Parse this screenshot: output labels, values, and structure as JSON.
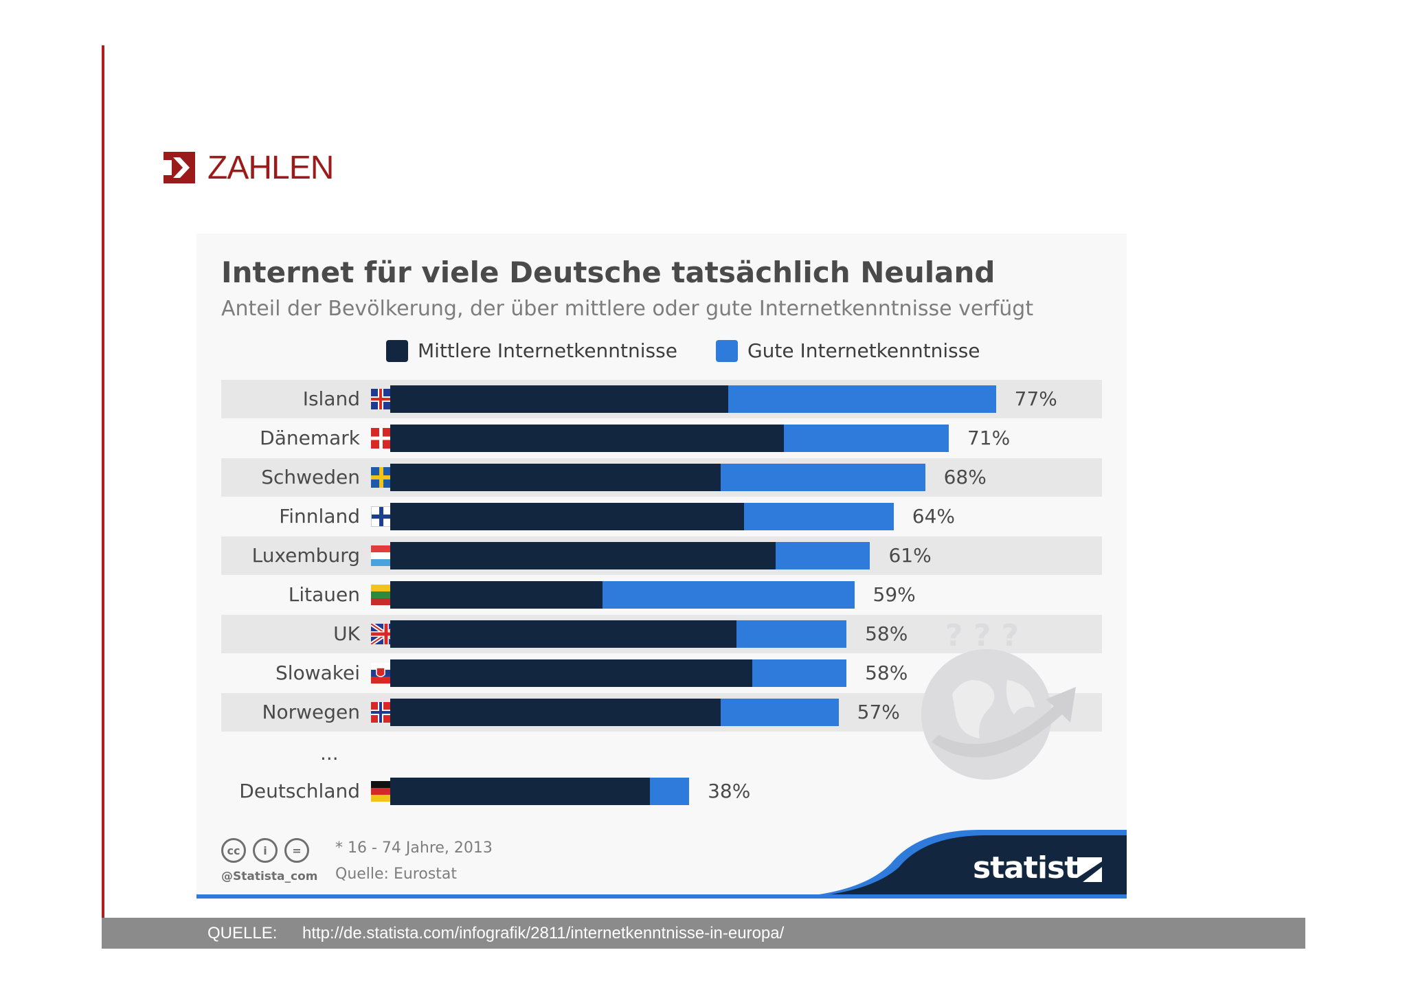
{
  "section": {
    "title": "ZAHLEN",
    "icon": "arrow-box-icon"
  },
  "chart_data": {
    "type": "bar",
    "orientation": "horizontal",
    "stacked": true,
    "title": "Internet für viele Deutsche tatsächlich Neuland",
    "subtitle": "Anteil der Bevölkerung, der über mittlere oder gute Internetkenntnisse verfügt",
    "categories": [
      "Island",
      "Dänemark",
      "Schweden",
      "Finnland",
      "Luxemburg",
      "Litauen",
      "UK",
      "Slowakei",
      "Norwegen",
      "Deutschland"
    ],
    "series": [
      {
        "name": "Mittlere Internetkenntnisse",
        "color": "#12263f",
        "values": [
          43,
          50,
          42,
          45,
          49,
          27,
          44,
          46,
          42,
          33
        ]
      },
      {
        "name": "Gute Internetkenntnisse",
        "color": "#2e7bdc",
        "values": [
          34,
          21,
          26,
          19,
          12,
          32,
          14,
          12,
          15,
          5
        ]
      }
    ],
    "totals": [
      "77%",
      "71%",
      "68%",
      "64%",
      "61%",
      "59%",
      "58%",
      "58%",
      "57%",
      "38%"
    ],
    "gap_label": "...",
    "xlim": [
      0,
      100
    ],
    "legend_position": "top",
    "grid": false
  },
  "footer": {
    "handle": "@Statista_com",
    "note": "* 16 - 74 Jahre, 2013",
    "source": "Quelle: Eurostat",
    "brand": "statista",
    "cc_icons": [
      {
        "name": "cc-icon",
        "text": "cc"
      },
      {
        "name": "attribution-icon",
        "text": "i"
      },
      {
        "name": "noderivatives-icon",
        "text": "="
      }
    ]
  },
  "quelle": {
    "label": "QUELLE:",
    "url": "http://de.statista.com/infografik/2811/internetkenntnisse-in-europa/"
  },
  "flags": [
    "iceland-flag-icon",
    "denmark-flag-icon",
    "sweden-flag-icon",
    "finland-flag-icon",
    "luxembourg-flag-icon",
    "lithuania-flag-icon",
    "uk-flag-icon",
    "slovakia-flag-icon",
    "norway-flag-icon",
    "germany-flag-icon"
  ],
  "decoration": {
    "icon": "globe-question-icon"
  }
}
